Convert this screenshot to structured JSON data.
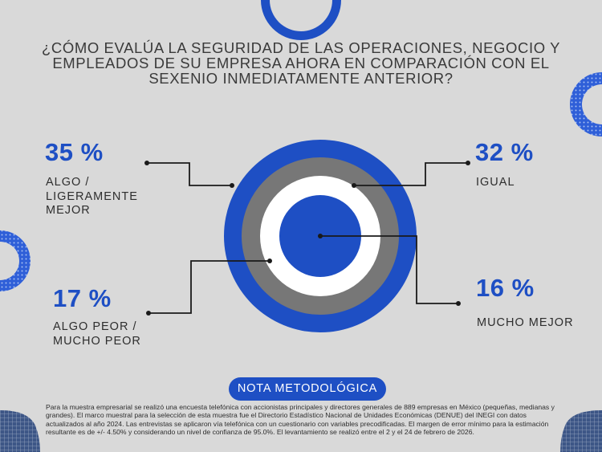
{
  "title": "¿CÓMO EVALÚA LA SEGURIDAD DE LAS OPERACIONES, NEGOCIO Y\nEMPLEADOS DE SU EMPRESA AHORA EN COMPARACIÓN CON EL\nSEXENIO INMEDIATAMENTE ANTERIOR?",
  "colors": {
    "background": "#d9d9d9",
    "accent": "#1e4fc4",
    "gray_ring": "#777777",
    "white_ring": "#ffffff",
    "text": "#2e2e2e"
  },
  "chart_data": {
    "type": "pie",
    "style": "concentric-rings",
    "categories": [
      "ALGO / LIGERAMENTE MEJOR",
      "IGUAL",
      "ALGO PEOR / MUCHO PEOR",
      "MUCHO MEJOR"
    ],
    "values": [
      35,
      32,
      17,
      16
    ],
    "value_labels": [
      "35 %",
      "32 %",
      "17 %",
      "16 %"
    ],
    "labels": [
      "ALGO /\nLIGERAMENTE\nMEJOR",
      "IGUAL",
      "ALGO PEOR /\nMUCHO PEOR",
      "MUCHO MEJOR"
    ],
    "ring_colors": [
      "#1e4fc4",
      "#777777",
      "#ffffff",
      "#1e4fc4"
    ],
    "unit": "%"
  },
  "note": {
    "heading": "NOTA METODOLÓGICA",
    "text": "Para la muestra empresarial se realizó una encuesta telefónica con accionistas principales y directores generales de 889 empresas en México (pequeñas, medianas y grandes). El marco muestral para la selección de esta muestra fue el Directorio Estadístico Nacional de Unidades Económicas (DENUE) del INEGI con datos actualizados al año 2024. Las entrevistas se aplicaron vía telefónica con un cuestionario con variables precodificadas. El margen de error mínimo para la estimación resultante es de +/- 4.50% y considerando un nivel de confianza de 95.0%. El levantamiento se realizó entre el 2 y el 24 de febrero de 2026."
  }
}
